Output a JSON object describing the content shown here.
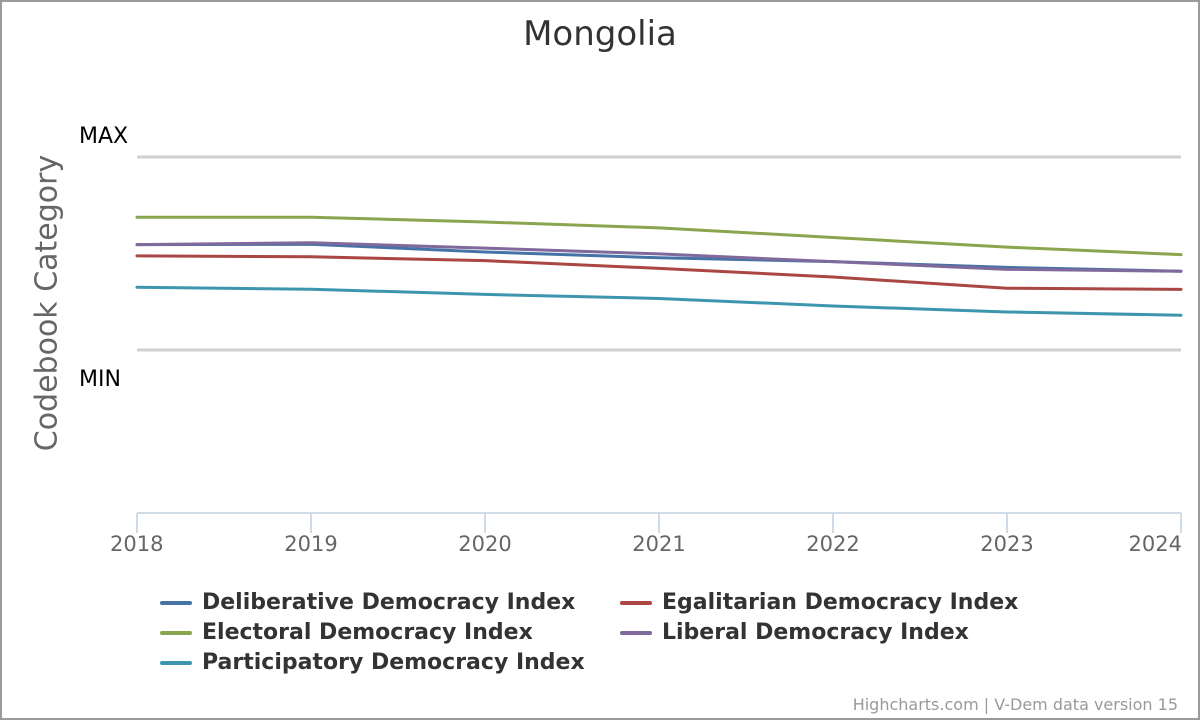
{
  "chart_data": {
    "type": "line",
    "title": "Mongolia",
    "ylabel": "Codebook Category",
    "y_category_labels": {
      "max": "MAX",
      "min": "MIN"
    },
    "x": [
      "2018",
      "2019",
      "2020",
      "2021",
      "2022",
      "2023",
      "2024"
    ],
    "ylim": [
      0,
      1
    ],
    "grid": true,
    "legend_position": "bottom",
    "series": [
      {
        "name": "Deliberative Democracy Index",
        "color": "#4572a7",
        "values": [
          0.546,
          0.548,
          0.508,
          0.478,
          0.458,
          0.428,
          0.408
        ]
      },
      {
        "name": "Egalitarian Democracy Index",
        "color": "#aa4643",
        "values": [
          0.488,
          0.483,
          0.463,
          0.423,
          0.378,
          0.32,
          0.314
        ]
      },
      {
        "name": "Electoral Democracy Index",
        "color": "#89a54e",
        "values": [
          0.688,
          0.688,
          0.663,
          0.633,
          0.583,
          0.533,
          0.494
        ]
      },
      {
        "name": "Liberal Democracy Index",
        "color": "#80699b",
        "values": [
          0.546,
          0.556,
          0.528,
          0.498,
          0.458,
          0.418,
          0.408
        ]
      },
      {
        "name": "Participatory Democracy Index",
        "color": "#3d96ae",
        "values": [
          0.325,
          0.315,
          0.288,
          0.267,
          0.228,
          0.197,
          0.18
        ]
      }
    ]
  },
  "credits": "Highcharts.com | V-Dem data version 15"
}
